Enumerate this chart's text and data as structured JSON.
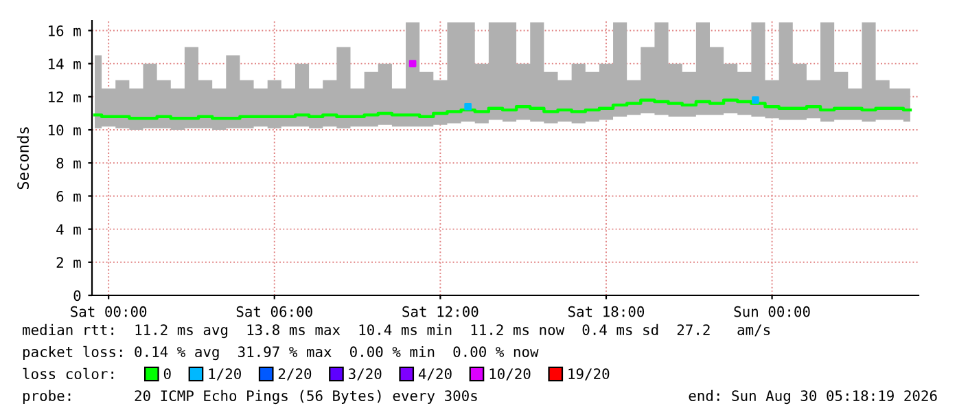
{
  "chart_data": {
    "type": "line",
    "ylabel": "Seconds",
    "legend_title": "loss color:",
    "x": [
      "2026-08-28T23:30",
      "2026-08-29T00:00",
      "2026-08-29T00:30",
      "2026-08-29T01:00",
      "2026-08-29T01:30",
      "2026-08-29T02:00",
      "2026-08-29T02:30",
      "2026-08-29T03:00",
      "2026-08-29T03:30",
      "2026-08-29T04:00",
      "2026-08-29T04:30",
      "2026-08-29T05:00",
      "2026-08-29T05:30",
      "2026-08-29T06:00",
      "2026-08-29T06:30",
      "2026-08-29T07:00",
      "2026-08-29T07:30",
      "2026-08-29T08:00",
      "2026-08-29T08:30",
      "2026-08-29T09:00",
      "2026-08-29T09:30",
      "2026-08-29T10:00",
      "2026-08-29T10:30",
      "2026-08-29T11:00",
      "2026-08-29T11:30",
      "2026-08-29T12:00",
      "2026-08-29T12:30",
      "2026-08-29T13:00",
      "2026-08-29T13:30",
      "2026-08-29T14:00",
      "2026-08-29T14:30",
      "2026-08-29T15:00",
      "2026-08-29T15:30",
      "2026-08-29T16:00",
      "2026-08-29T16:30",
      "2026-08-29T17:00",
      "2026-08-29T17:30",
      "2026-08-29T18:00",
      "2026-08-29T18:30",
      "2026-08-29T19:00",
      "2026-08-29T19:30",
      "2026-08-29T20:00",
      "2026-08-29T20:30",
      "2026-08-29T21:00",
      "2026-08-29T21:30",
      "2026-08-29T22:00",
      "2026-08-29T22:30",
      "2026-08-29T23:00",
      "2026-08-29T23:30",
      "2026-08-30T00:00",
      "2026-08-30T00:30",
      "2026-08-30T01:00",
      "2026-08-30T01:30",
      "2026-08-30T02:00",
      "2026-08-30T02:30",
      "2026-08-30T03:00",
      "2026-08-30T03:30",
      "2026-08-30T04:00",
      "2026-08-30T04:30",
      "2026-08-30T05:00"
    ],
    "series": [
      {
        "name": "0",
        "color": "#00ff00",
        "values": [
          10.9,
          10.8,
          10.8,
          10.7,
          10.7,
          10.8,
          10.7,
          10.7,
          10.8,
          10.7,
          10.7,
          10.8,
          10.8,
          10.8,
          10.8,
          10.9,
          10.8,
          10.9,
          10.8,
          10.8,
          10.9,
          11.0,
          10.9,
          10.9,
          10.8,
          11.0,
          11.1,
          11.2,
          11.1,
          11.3,
          11.2,
          11.4,
          11.3,
          11.1,
          11.2,
          11.1,
          11.2,
          11.3,
          11.5,
          11.6,
          11.8,
          11.7,
          11.6,
          11.5,
          11.7,
          11.6,
          11.8,
          11.7,
          11.6,
          11.4,
          11.3,
          11.3,
          11.4,
          11.2,
          11.3,
          11.3,
          11.2,
          11.3,
          11.3,
          11.2
        ],
        "lower": [
          10.1,
          10.2,
          10.1,
          10.0,
          10.1,
          10.1,
          10.0,
          10.1,
          10.1,
          10.0,
          10.1,
          10.1,
          10.2,
          10.1,
          10.2,
          10.2,
          10.1,
          10.2,
          10.1,
          10.2,
          10.2,
          10.3,
          10.2,
          10.2,
          10.2,
          10.3,
          10.4,
          10.5,
          10.4,
          10.6,
          10.5,
          10.6,
          10.5,
          10.4,
          10.5,
          10.4,
          10.5,
          10.6,
          10.8,
          10.9,
          11.0,
          10.9,
          10.8,
          10.8,
          10.9,
          10.9,
          11.0,
          10.9,
          10.8,
          10.7,
          10.6,
          10.6,
          10.7,
          10.5,
          10.6,
          10.6,
          10.5,
          10.6,
          10.6,
          10.5
        ],
        "upper": [
          14.5,
          12.5,
          13,
          12.5,
          14,
          13,
          12.5,
          15,
          13,
          12.5,
          14.5,
          13,
          12.5,
          13,
          12.5,
          14,
          12.5,
          13,
          15,
          12.5,
          13.5,
          14,
          12.5,
          16.5,
          13.5,
          13,
          16.5,
          16.5,
          14,
          16.5,
          16.5,
          14,
          16.5,
          13.5,
          13,
          14,
          13.5,
          14,
          16.5,
          13,
          15,
          16.5,
          14,
          13.5,
          16.5,
          15,
          14,
          13.5,
          16.5,
          13,
          16.5,
          14,
          13,
          16.5,
          13.5,
          12.5,
          16.5,
          13,
          12.5,
          12.5
        ]
      },
      {
        "name": "1/20",
        "type": "scatter",
        "marker": "square",
        "color": "#00b8ff",
        "x": [
          "2026-08-29T13:00",
          "2026-08-29T23:24"
        ],
        "values": [
          11.4,
          11.8
        ]
      },
      {
        "name": "2/20",
        "type": "scatter",
        "color": "#0059ff",
        "values": [
          null,
          null,
          null,
          null,
          null,
          null,
          null,
          null,
          null,
          null,
          null,
          null,
          null,
          null,
          null,
          null,
          null,
          null,
          null,
          null,
          null,
          null,
          null,
          null,
          null,
          null,
          null,
          null,
          null,
          null,
          null,
          null,
          null,
          null,
          null,
          null,
          null,
          null,
          null,
          null,
          null,
          null,
          null,
          null,
          null,
          null,
          null,
          null,
          null,
          null,
          null,
          null,
          null,
          null,
          null,
          null,
          null,
          null,
          null,
          null
        ]
      },
      {
        "name": "3/20",
        "type": "scatter",
        "color": "#5e00ff",
        "values": [
          null,
          null,
          null,
          null,
          null,
          null,
          null,
          null,
          null,
          null,
          null,
          null,
          null,
          null,
          null,
          null,
          null,
          null,
          null,
          null,
          null,
          null,
          null,
          null,
          null,
          null,
          null,
          null,
          null,
          null,
          null,
          null,
          null,
          null,
          null,
          null,
          null,
          null,
          null,
          null,
          null,
          null,
          null,
          null,
          null,
          null,
          null,
          null,
          null,
          null,
          null,
          null,
          null,
          null,
          null,
          null,
          null,
          null,
          null,
          null
        ]
      },
      {
        "name": "4/20",
        "type": "scatter",
        "color": "#7e00ff",
        "values": [
          null,
          null,
          null,
          null,
          null,
          null,
          null,
          null,
          null,
          null,
          null,
          null,
          null,
          null,
          null,
          null,
          null,
          null,
          null,
          null,
          null,
          null,
          null,
          null,
          null,
          null,
          null,
          null,
          null,
          null,
          null,
          null,
          null,
          null,
          null,
          null,
          null,
          null,
          null,
          null,
          null,
          null,
          null,
          null,
          null,
          null,
          null,
          null,
          null,
          null,
          null,
          null,
          null,
          null,
          null,
          null,
          null,
          null,
          null,
          null
        ]
      },
      {
        "name": "10/20",
        "type": "scatter",
        "marker": "square",
        "color": "#dd00ff",
        "x": [
          "2026-08-29T11:00"
        ],
        "values": [
          14.0
        ]
      },
      {
        "name": "19/20",
        "type": "scatter",
        "color": "#ff0000",
        "values": [
          null,
          null,
          null,
          null,
          null,
          null,
          null,
          null,
          null,
          null,
          null,
          null,
          null,
          null,
          null,
          null,
          null,
          null,
          null,
          null,
          null,
          null,
          null,
          null,
          null,
          null,
          null,
          null,
          null,
          null,
          null,
          null,
          null,
          null,
          null,
          null,
          null,
          null,
          null,
          null,
          null,
          null,
          null,
          null,
          null,
          null,
          null,
          null,
          null,
          null,
          null,
          null,
          null,
          null,
          null,
          null,
          null,
          null,
          null,
          null
        ]
      }
    ],
    "xlim": [
      "2026-08-28T23:24",
      "2026-08-30T05:18"
    ],
    "xticks": [
      {
        "value": "2026-08-29T00:00",
        "label": "Sat 00:00"
      },
      {
        "value": "2026-08-29T06:00",
        "label": "Sat 06:00"
      },
      {
        "value": "2026-08-29T12:00",
        "label": "Sat 12:00"
      },
      {
        "value": "2026-08-29T18:00",
        "label": "Sat 18:00"
      },
      {
        "value": "2026-08-30T00:00",
        "label": "Sun 00:00"
      }
    ],
    "ylim": [
      0,
      16.6
    ],
    "yticks": [
      0,
      {
        "value": 2,
        "label": "2 m"
      },
      {
        "value": 4,
        "label": "4 m"
      },
      {
        "value": 6,
        "label": "6 m"
      },
      {
        "value": 8,
        "label": "8 m"
      },
      {
        "value": 10,
        "label": "10 m"
      },
      {
        "value": 12,
        "label": "12 m"
      },
      {
        "value": 14,
        "label": "14 m"
      },
      {
        "value": 16,
        "label": "16 m"
      }
    ],
    "grid": true,
    "legend": "bottom",
    "marker": "none",
    "annotations": [
      "median rtt:  11.2 ms avg  13.8 ms max  10.4 ms min  11.2 ms now  0.4 ms sd  27.2   am/s",
      "packet loss: 0.14 % avg  31.97 % max  0.00 % min  0.00 % now",
      "probe:       20 ICMP Echo Pings (56 Bytes) every 300s",
      "end: Sun Aug 30 05:18:19 2026"
    ]
  }
}
